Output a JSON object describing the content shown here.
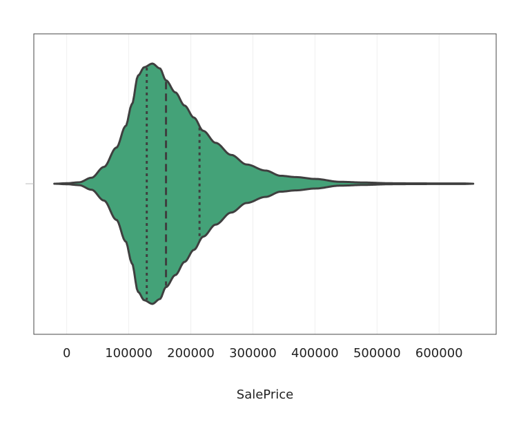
{
  "chart_data": {
    "type": "violin",
    "title": "",
    "xlabel": "SalePrice",
    "ylabel": "",
    "xlim": [
      -53000,
      692000
    ],
    "xticks": [
      0,
      100000,
      200000,
      300000,
      400000,
      500000,
      600000
    ],
    "xtick_labels": [
      "0",
      "100000",
      "200000",
      "300000",
      "400000",
      "500000",
      "600000"
    ],
    "grid": true,
    "series": [
      {
        "name": "",
        "color": "#44a278",
        "edge_color": "#3f3f3f",
        "range": [
          -20000,
          655000
        ],
        "quartiles": {
          "q1": 129000,
          "median": 160000,
          "q3": 214000
        },
        "density_profile": [
          [
            -20000,
            0.0
          ],
          [
            0,
            0.004
          ],
          [
            20000,
            0.012
          ],
          [
            40000,
            0.05
          ],
          [
            60000,
            0.14
          ],
          [
            80000,
            0.3
          ],
          [
            95000,
            0.48
          ],
          [
            105000,
            0.66
          ],
          [
            115000,
            0.9
          ],
          [
            125000,
            0.97
          ],
          [
            138000,
            1.0
          ],
          [
            150000,
            0.96
          ],
          [
            160000,
            0.86
          ],
          [
            175000,
            0.76
          ],
          [
            190000,
            0.65
          ],
          [
            205000,
            0.55
          ],
          [
            220000,
            0.44
          ],
          [
            240000,
            0.34
          ],
          [
            265000,
            0.24
          ],
          [
            290000,
            0.16
          ],
          [
            320000,
            0.11
          ],
          [
            345000,
            0.066
          ],
          [
            370000,
            0.055
          ],
          [
            400000,
            0.04
          ],
          [
            440000,
            0.016
          ],
          [
            480000,
            0.01
          ],
          [
            520000,
            0.004
          ],
          [
            560000,
            0.003
          ],
          [
            600000,
            0.002
          ],
          [
            640000,
            0.002
          ],
          [
            655000,
            0.0
          ]
        ]
      }
    ]
  }
}
